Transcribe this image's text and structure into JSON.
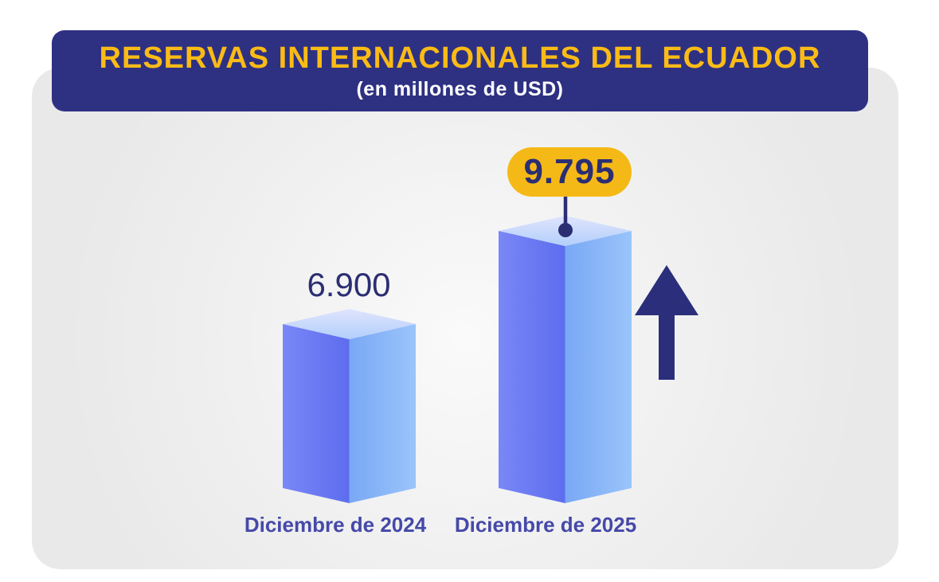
{
  "header": {
    "title": "RESERVAS INTERNACIONALES DEL ECUADOR",
    "subtitle": "(en millones de USD)"
  },
  "chart_data": {
    "type": "bar",
    "title": "RESERVAS INTERNACIONALES DEL ECUADOR",
    "subtitle": "(en millones de USD)",
    "unit": "millones de USD",
    "categories": [
      "Diciembre de 2024",
      "Diciembre de 2025"
    ],
    "values": [
      6900,
      9795
    ],
    "value_labels": [
      "6.900",
      "9.795"
    ],
    "legend": "none",
    "grid": false,
    "annotations": [
      {
        "type": "callout-badge",
        "target": "Diciembre de 2025",
        "text": "9.795"
      },
      {
        "type": "trend-arrow",
        "direction": "up",
        "position": "right-of-2025-bar"
      }
    ]
  },
  "colors": {
    "header_bg": "#2e3182",
    "title_text": "#fbbb16",
    "subtitle_text": "#ffffff",
    "badge_bg": "#f5b917",
    "value_text": "#2b2e72",
    "category_text": "#4549a8",
    "arrow": "#2b2e7a",
    "connector": "#2b2e72",
    "card_bg": "#e9e9e9",
    "bar_left_face": [
      "#7987f6",
      "#5d6dee"
    ],
    "bar_right_face": [
      "#79a8f5",
      "#9ac4fa"
    ],
    "bar_top_face": [
      "#e0e4fd",
      "#b2cffb"
    ]
  }
}
